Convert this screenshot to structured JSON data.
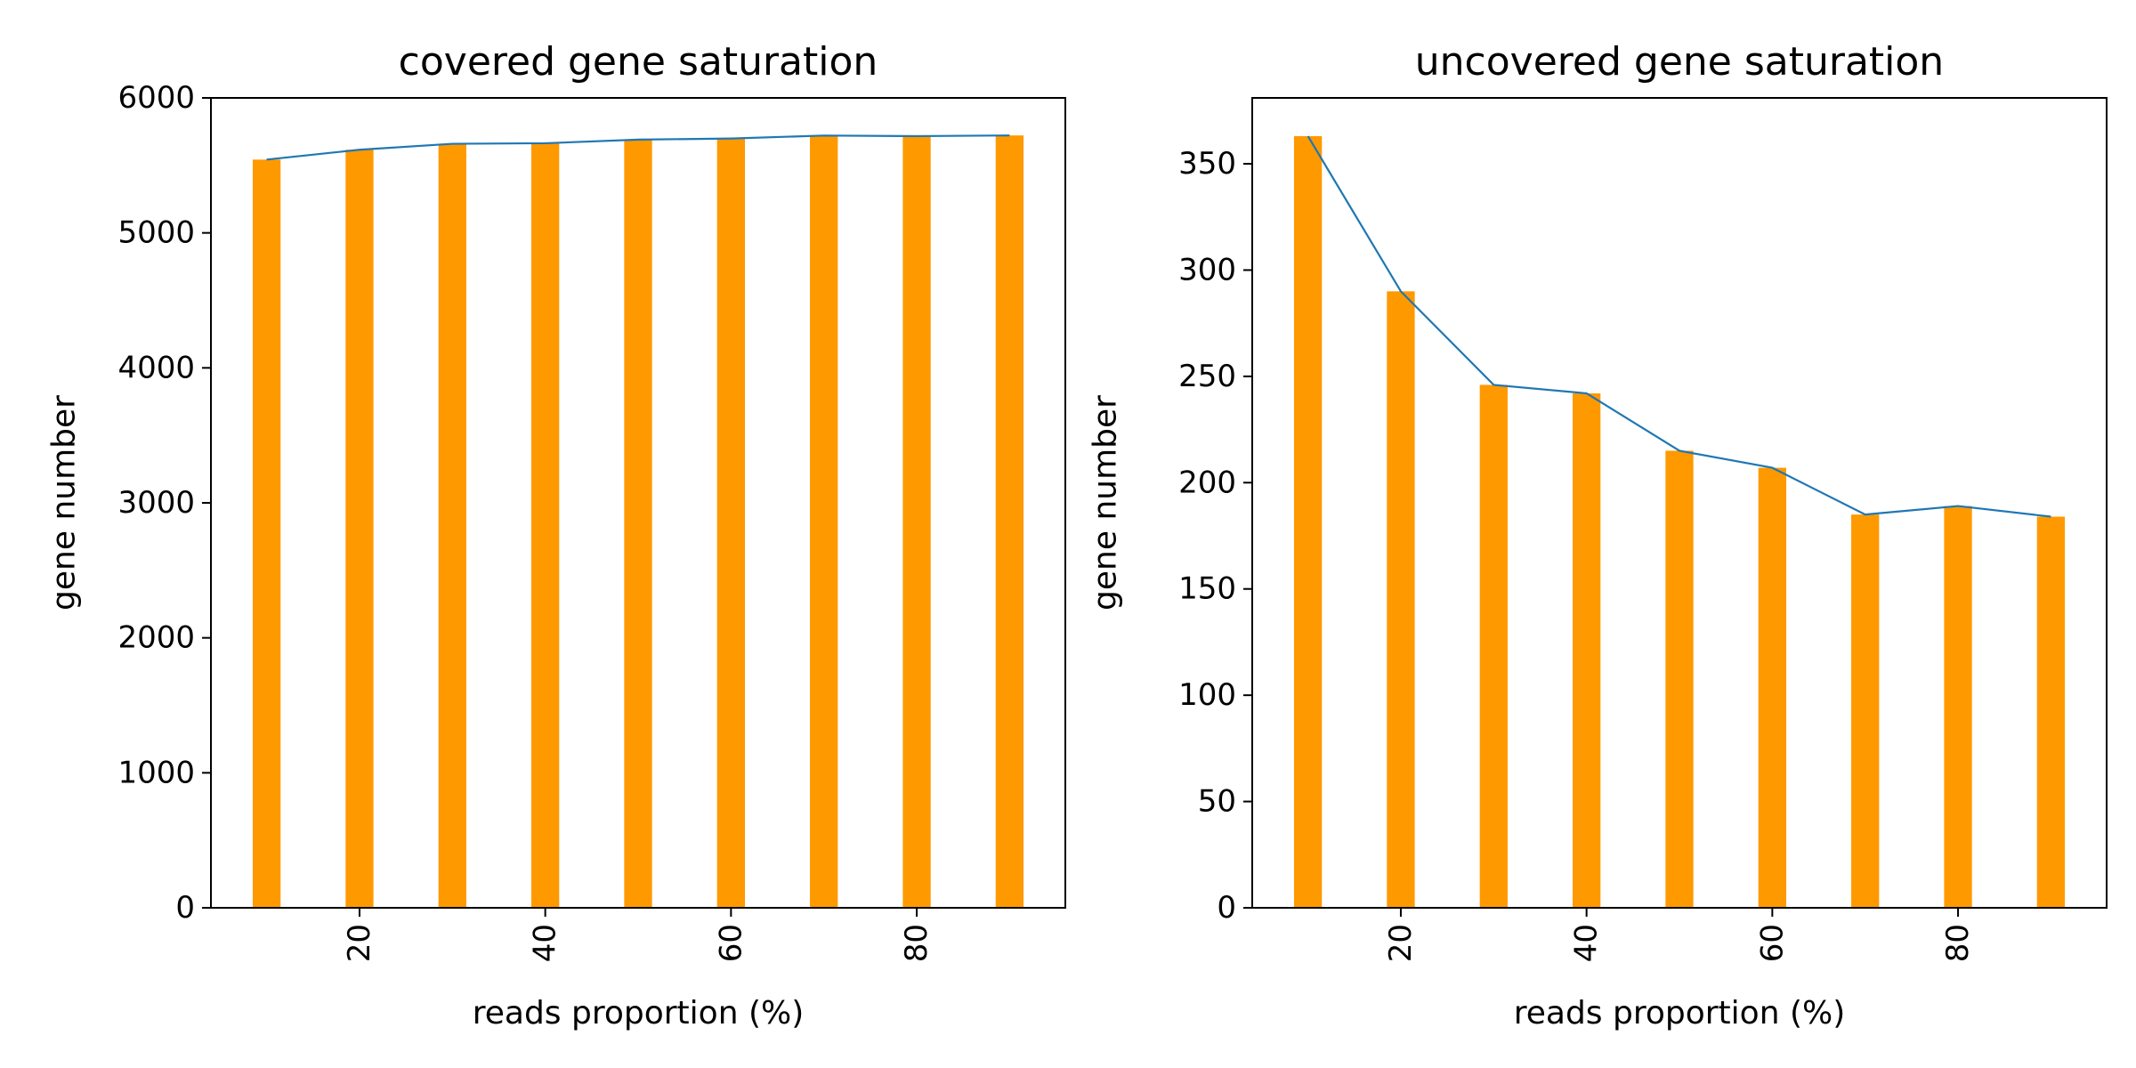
{
  "colors": {
    "bar": "#ff9900",
    "line": "#1f77b4",
    "axis": "#000000",
    "background": "#ffffff"
  },
  "chart_data": [
    {
      "type": "bar",
      "title": "covered gene saturation",
      "xlabel": "reads proportion (%)",
      "ylabel": "gene number",
      "x": [
        10,
        20,
        30,
        40,
        50,
        60,
        70,
        80,
        90
      ],
      "values": [
        5543,
        5616,
        5660,
        5664,
        5691,
        5699,
        5721,
        5717,
        5722
      ],
      "line_values": [
        5543,
        5616,
        5660,
        5664,
        5691,
        5699,
        5721,
        5717,
        5722
      ],
      "xlim": [
        4,
        96
      ],
      "ylim": [
        0,
        6000
      ],
      "xticks": [
        20,
        40,
        60,
        80
      ],
      "xtick_labels": [
        "20",
        "40",
        "60",
        "80"
      ],
      "yticks": [
        0,
        1000,
        2000,
        3000,
        4000,
        5000,
        6000
      ],
      "ytick_labels": [
        "0",
        "1000",
        "2000",
        "3000",
        "4000",
        "5000",
        "6000"
      ],
      "grid": false
    },
    {
      "type": "bar",
      "title": "uncovered gene saturation",
      "xlabel": "reads proportion (%)",
      "ylabel": "gene number",
      "x": [
        10,
        20,
        30,
        40,
        50,
        60,
        70,
        80,
        90
      ],
      "values": [
        363,
        290,
        246,
        242,
        215,
        207,
        185,
        189,
        184
      ],
      "line_values": [
        363,
        290,
        246,
        242,
        215,
        207,
        185,
        189,
        184
      ],
      "xlim": [
        4,
        96
      ],
      "ylim": [
        0,
        381
      ],
      "xticks": [
        20,
        40,
        60,
        80
      ],
      "xtick_labels": [
        "20",
        "40",
        "60",
        "80"
      ],
      "yticks": [
        0,
        50,
        100,
        150,
        200,
        250,
        300,
        350
      ],
      "ytick_labels": [
        "0",
        "50",
        "100",
        "150",
        "200",
        "250",
        "300",
        "350"
      ],
      "grid": false
    }
  ]
}
